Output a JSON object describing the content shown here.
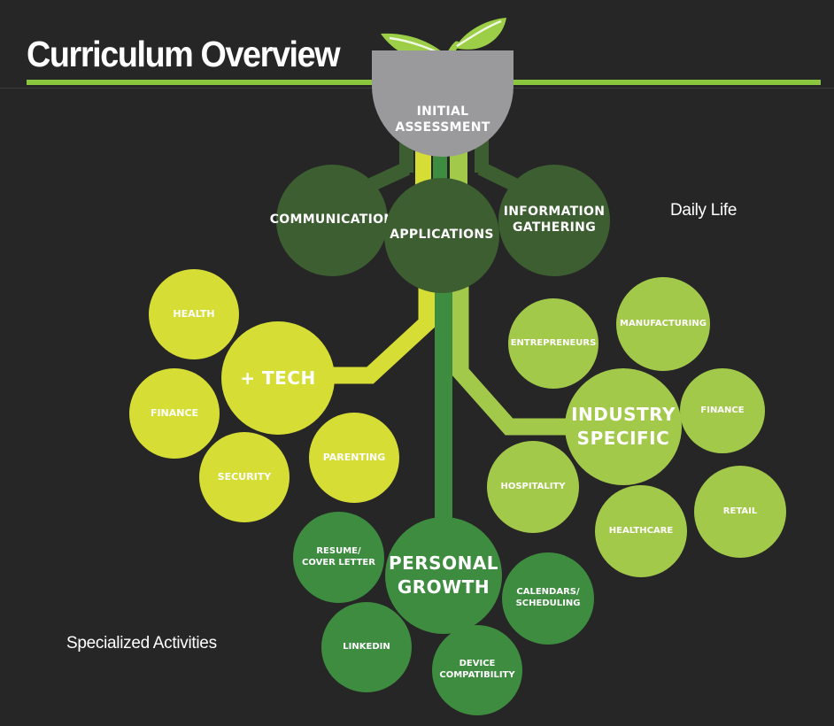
{
  "title": "Curriculum Overview",
  "annotations": {
    "daily_life": "Daily Life",
    "specialized_activities": "Specialized Activities"
  },
  "colors": {
    "background": "#262626",
    "accent_line": "#8cc63f",
    "assessment": "#9a9a9c",
    "core": "#3c5e30",
    "tech_branch": "#d6dd34",
    "industry_branch": "#a3c94a",
    "growth_branch": "#3d8c3f"
  },
  "nodes": {
    "initial_assessment": "INITIAL\nASSESSMENT",
    "communication": "COMMUNICATION",
    "applications": "APPLICATIONS",
    "information_gathering": "INFORMATION\nGATHERING",
    "tech": "+ TECH",
    "health": "HEALTH",
    "finance_tech": "FINANCE",
    "security": "SECURITY",
    "parenting": "PARENTING",
    "industry_specific": "INDUSTRY\nSPECIFIC",
    "entrepreneurs": "ENTREPRENEURS",
    "manufacturing": "MANUFACTURING",
    "finance_industry": "FINANCE",
    "hospitality": "HOSPITALITY",
    "healthcare": "HEALTHCARE",
    "retail": "RETAIL",
    "personal_growth": "PERSONAL\nGROWTH",
    "resume_cover_letter": "RESUME/\nCOVER LETTER",
    "linkedin": "LINKEDIN",
    "device_compatibility": "DEVICE\nCOMPATIBILITY",
    "calendars_scheduling": "CALENDARS/\nSCHEDULING"
  }
}
